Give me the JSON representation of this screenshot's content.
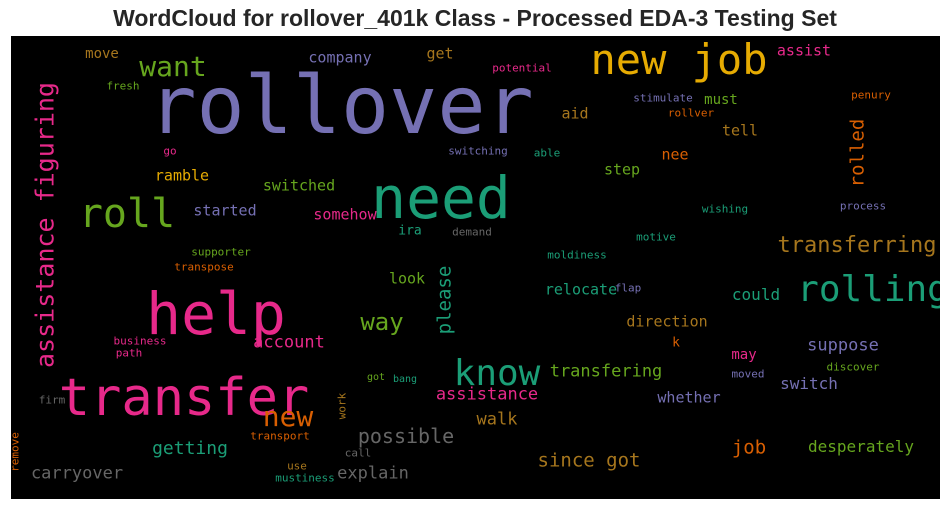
{
  "title": "WordCloud for rollover_401k Class - Processed EDA-3 Testing Set",
  "chart_data": {
    "type": "wordcloud",
    "background": "#000000",
    "colormap": [
      "#7570b3",
      "#1b9e77",
      "#d95f02",
      "#e7298a",
      "#66a61e",
      "#e6ab02",
      "#a6761d",
      "#666666"
    ],
    "words": [
      {
        "text": "rollover",
        "color": "#7570b3",
        "vertical": false
      },
      {
        "text": "need",
        "color": "#1b9e77",
        "vertical": false
      },
      {
        "text": "help",
        "color": "#e7298a",
        "vertical": false
      },
      {
        "text": "transfer",
        "color": "#e7298a",
        "vertical": false
      },
      {
        "text": "new job",
        "color": "#e6ab02",
        "vertical": false
      },
      {
        "text": "roll",
        "color": "#66a61e",
        "vertical": false
      },
      {
        "text": "rolling",
        "color": "#1b9e77",
        "vertical": false
      },
      {
        "text": "know",
        "color": "#1b9e77",
        "vertical": false
      },
      {
        "text": "want",
        "color": "#66a61e",
        "vertical": false
      },
      {
        "text": "assistance figuring",
        "color": "#e7298a",
        "vertical": true
      },
      {
        "text": "transferring",
        "color": "#a6761d",
        "vertical": false
      },
      {
        "text": "new",
        "color": "#d95f02",
        "vertical": false
      },
      {
        "text": "way",
        "color": "#66a61e",
        "vertical": false
      },
      {
        "text": "please",
        "color": "#1b9e77",
        "vertical": true
      },
      {
        "text": "rolled",
        "color": "#d95f02",
        "vertical": true
      },
      {
        "text": "possible",
        "color": "#666666",
        "vertical": false
      },
      {
        "text": "since got",
        "color": "#a6761d",
        "vertical": false
      },
      {
        "text": "transfering",
        "color": "#66a61e",
        "vertical": false
      },
      {
        "text": "assistance",
        "color": "#e7298a",
        "vertical": false
      },
      {
        "text": "account",
        "color": "#e7298a",
        "vertical": false
      },
      {
        "text": "getting",
        "color": "#1b9e77",
        "vertical": false
      },
      {
        "text": "job",
        "color": "#d95f02",
        "vertical": false
      },
      {
        "text": "carryover",
        "color": "#666666",
        "vertical": false
      },
      {
        "text": "explain",
        "color": "#666666",
        "vertical": false
      },
      {
        "text": "desperately",
        "color": "#66a61e",
        "vertical": false
      },
      {
        "text": "suppose",
        "color": "#7570b3",
        "vertical": false
      },
      {
        "text": "switch",
        "color": "#7570b3",
        "vertical": false
      },
      {
        "text": "whether",
        "color": "#7570b3",
        "vertical": false
      },
      {
        "text": "walk",
        "color": "#a6761d",
        "vertical": false
      },
      {
        "text": "direction",
        "color": "#a6761d",
        "vertical": false
      },
      {
        "text": "could",
        "color": "#1b9e77",
        "vertical": false
      },
      {
        "text": "relocate",
        "color": "#1b9e77",
        "vertical": false
      },
      {
        "text": "look",
        "color": "#66a61e",
        "vertical": false
      },
      {
        "text": "switched",
        "color": "#66a61e",
        "vertical": false
      },
      {
        "text": "somehow",
        "color": "#e7298a",
        "vertical": false
      },
      {
        "text": "started",
        "color": "#7570b3",
        "vertical": false
      },
      {
        "text": "ramble",
        "color": "#e6ab02",
        "vertical": false
      },
      {
        "text": "step",
        "color": "#66a61e",
        "vertical": false
      },
      {
        "text": "nee",
        "color": "#d95f02",
        "vertical": false
      },
      {
        "text": "tell",
        "color": "#a6761d",
        "vertical": false
      },
      {
        "text": "must",
        "color": "#66a61e",
        "vertical": false
      },
      {
        "text": "aid",
        "color": "#a6761d",
        "vertical": false
      },
      {
        "text": "get",
        "color": "#a6761d",
        "vertical": false
      },
      {
        "text": "company",
        "color": "#7570b3",
        "vertical": false
      },
      {
        "text": "move",
        "color": "#a6761d",
        "vertical": false
      },
      {
        "text": "assist",
        "color": "#e7298a",
        "vertical": false
      },
      {
        "text": "may",
        "color": "#e7298a",
        "vertical": false
      },
      {
        "text": "k",
        "color": "#d95f02",
        "vertical": false
      },
      {
        "text": "ira",
        "color": "#1b9e77",
        "vertical": false
      },
      {
        "text": "fresh",
        "color": "#66a61e",
        "vertical": false
      },
      {
        "text": "potential",
        "color": "#e7298a",
        "vertical": false
      },
      {
        "text": "stimulate",
        "color": "#7570b3",
        "vertical": false
      },
      {
        "text": "rollver",
        "color": "#d95f02",
        "vertical": false
      },
      {
        "text": "penury",
        "color": "#d95f02",
        "vertical": false
      },
      {
        "text": "go",
        "color": "#e7298a",
        "vertical": false
      },
      {
        "text": "switching",
        "color": "#7570b3",
        "vertical": false
      },
      {
        "text": "able",
        "color": "#1b9e77",
        "vertical": false
      },
      {
        "text": "wishing",
        "color": "#1b9e77",
        "vertical": false
      },
      {
        "text": "process",
        "color": "#7570b3",
        "vertical": false
      },
      {
        "text": "supporter",
        "color": "#66a61e",
        "vertical": false
      },
      {
        "text": "transpose",
        "color": "#d95f02",
        "vertical": false
      },
      {
        "text": "demand",
        "color": "#666666",
        "vertical": false
      },
      {
        "text": "motive",
        "color": "#1b9e77",
        "vertical": false
      },
      {
        "text": "moldiness",
        "color": "#1b9e77",
        "vertical": false
      },
      {
        "text": "flap",
        "color": "#7570b3",
        "vertical": false
      },
      {
        "text": "business",
        "color": "#e7298a",
        "vertical": false
      },
      {
        "text": "path",
        "color": "#e7298a",
        "vertical": false
      },
      {
        "text": "got",
        "color": "#66a61e",
        "vertical": false
      },
      {
        "text": "bang",
        "color": "#1b9e77",
        "vertical": false
      },
      {
        "text": "moved",
        "color": "#7570b3",
        "vertical": false
      },
      {
        "text": "discover",
        "color": "#66a61e",
        "vertical": false
      },
      {
        "text": "firm",
        "color": "#666666",
        "vertical": false
      },
      {
        "text": "work",
        "color": "#a6761d",
        "vertical": true
      },
      {
        "text": "transport",
        "color": "#d95f02",
        "vertical": false
      },
      {
        "text": "call",
        "color": "#666666",
        "vertical": false
      },
      {
        "text": "use",
        "color": "#a6761d",
        "vertical": false
      },
      {
        "text": "mustiness",
        "color": "#1b9e77",
        "vertical": false
      },
      {
        "text": "remove",
        "color": "#d95f02",
        "vertical": true
      }
    ]
  }
}
